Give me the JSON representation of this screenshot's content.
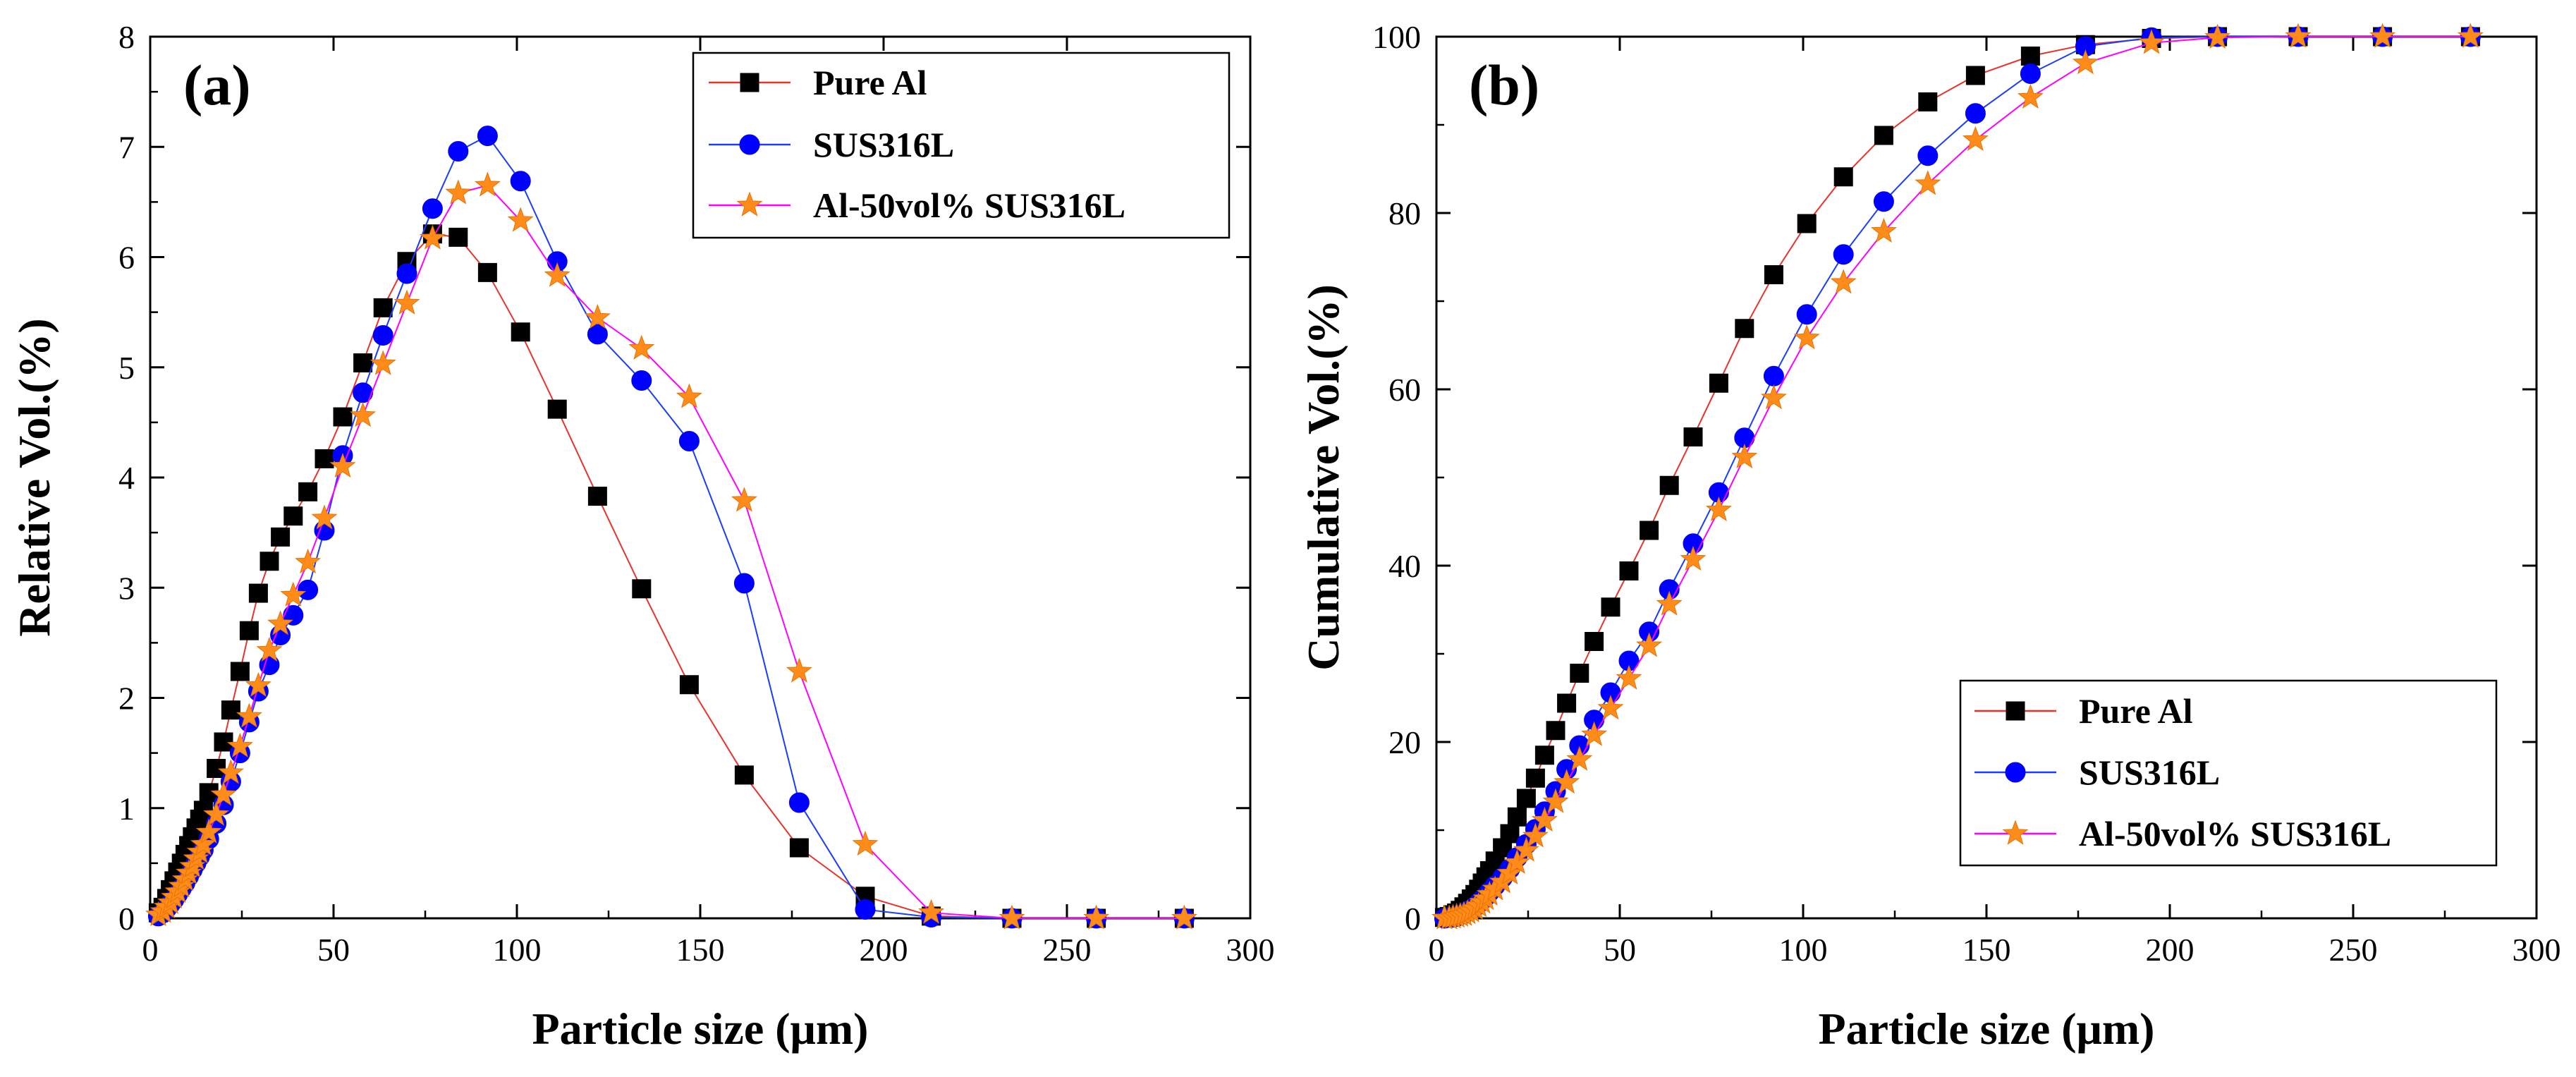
{
  "colors": {
    "pure_al_line": "#e8332b",
    "pure_al_marker": "#000000",
    "sus_line": "#1a3cff",
    "sus_marker": "#0000ff",
    "mix_line": "#ff00ff",
    "mix_marker": "#ff8c1a"
  },
  "chart_data": [
    {
      "id": "a",
      "type": "line",
      "panel_label": "(a)",
      "xlabel": "Particle size (μm)",
      "ylabel": "Relative Vol.(%)",
      "xlim": [
        0,
        300
      ],
      "ylim": [
        0,
        8
      ],
      "xticks": [
        "0",
        "50",
        "100",
        "150",
        "200",
        "250",
        "300"
      ],
      "yticks": [
        "0",
        "1",
        "2",
        "3",
        "4",
        "5",
        "6",
        "7",
        "8"
      ],
      "grid": false,
      "legend": "top-right",
      "series": [
        {
          "name": "Pure Al",
          "marker": "square",
          "x": [
            2.2,
            3.5,
            4.5,
            5.5,
            6.5,
            7.5,
            8.5,
            9.5,
            10.5,
            11.5,
            12.5,
            13.5,
            14.5,
            16,
            18,
            20,
            22,
            24.5,
            27,
            29.5,
            32.5,
            35.5,
            39,
            43,
            47.5,
            52.5,
            58,
            63.5,
            70,
            77,
            84,
            92,
            101,
            111,
            122,
            134,
            147,
            162,
            177,
            195,
            213,
            235,
            258,
            282
          ],
          "y": [
            0.05,
            0.1,
            0.18,
            0.26,
            0.34,
            0.42,
            0.5,
            0.58,
            0.66,
            0.74,
            0.82,
            0.9,
            0.98,
            1.14,
            1.36,
            1.6,
            1.89,
            2.24,
            2.61,
            2.95,
            3.24,
            3.46,
            3.65,
            3.87,
            4.17,
            4.55,
            5.04,
            5.54,
            5.96,
            6.21,
            6.18,
            5.86,
            5.32,
            4.62,
            3.83,
            2.99,
            2.12,
            1.3,
            0.64,
            0.2,
            0.02,
            0,
            0,
            0
          ]
        },
        {
          "name": "SUS316L",
          "marker": "circle",
          "x": [
            2.2,
            3.5,
            4.5,
            5.5,
            6.5,
            7.5,
            8.5,
            9.5,
            10.5,
            11.5,
            12.5,
            13.5,
            14.5,
            16,
            18,
            20,
            22,
            24.5,
            27,
            29.5,
            32.5,
            35.5,
            39,
            43,
            47.5,
            52.5,
            58,
            63.5,
            70,
            77,
            84,
            92,
            101,
            111,
            122,
            134,
            147,
            162,
            177,
            195,
            213,
            235,
            258,
            282
          ],
          "y": [
            0.02,
            0.05,
            0.09,
            0.13,
            0.17,
            0.22,
            0.27,
            0.32,
            0.38,
            0.44,
            0.5,
            0.56,
            0.62,
            0.72,
            0.86,
            1.03,
            1.24,
            1.5,
            1.78,
            2.06,
            2.3,
            2.57,
            2.75,
            2.98,
            3.52,
            4.2,
            4.77,
            5.29,
            5.85,
            6.44,
            6.96,
            7.1,
            6.69,
            5.96,
            5.3,
            4.88,
            4.33,
            3.04,
            1.05,
            0.08,
            0.01,
            0,
            0,
            0
          ]
        },
        {
          "name": "Al-50vol% SUS316L",
          "marker": "star",
          "x": [
            2.2,
            3.5,
            4.5,
            5.5,
            6.5,
            7.5,
            8.5,
            9.5,
            10.5,
            11.5,
            12.5,
            13.5,
            14.5,
            16,
            18,
            20,
            22,
            24.5,
            27,
            29.5,
            32.5,
            35.5,
            39,
            43,
            47.5,
            52.5,
            58,
            63.5,
            70,
            77,
            84,
            92,
            101,
            111,
            122,
            134,
            147,
            162,
            177,
            195,
            213,
            235,
            258,
            282
          ],
          "y": [
            0.03,
            0.06,
            0.1,
            0.14,
            0.19,
            0.24,
            0.29,
            0.35,
            0.41,
            0.47,
            0.54,
            0.6,
            0.67,
            0.78,
            0.94,
            1.12,
            1.32,
            1.56,
            1.83,
            2.11,
            2.43,
            2.67,
            2.93,
            3.23,
            3.63,
            4.1,
            4.56,
            5.03,
            5.58,
            6.17,
            6.58,
            6.65,
            6.33,
            5.83,
            5.45,
            5.17,
            4.73,
            3.79,
            2.24,
            0.67,
            0.05,
            0,
            0,
            0
          ]
        }
      ]
    },
    {
      "id": "b",
      "type": "line",
      "panel_label": "(b)",
      "xlabel": "Particle size (μm)",
      "ylabel": "Cumulative Vol.(%)",
      "xlim": [
        0,
        300
      ],
      "ylim": [
        0,
        100
      ],
      "xticks": [
        "0",
        "50",
        "100",
        "150",
        "200",
        "250",
        "300"
      ],
      "yticks": [
        "0",
        "20",
        "40",
        "60",
        "80",
        "100"
      ],
      "grid": false,
      "legend": "bottom-right",
      "series": [
        {
          "name": "Pure Al",
          "marker": "square",
          "x": [
            2.2,
            3.5,
            4.5,
            5.5,
            6.5,
            7.5,
            8.5,
            9.5,
            10.5,
            11.5,
            12.5,
            13.5,
            14.5,
            16,
            18,
            20,
            22,
            24.5,
            27,
            29.5,
            32.5,
            35.5,
            39,
            43,
            47.5,
            52.5,
            58,
            63.5,
            70,
            77,
            84,
            92,
            101,
            111,
            122,
            134,
            147,
            162,
            177,
            195,
            213,
            235,
            258,
            282
          ],
          "y": [
            0.1,
            0.2,
            0.4,
            0.6,
            0.9,
            1.3,
            1.7,
            2.2,
            2.7,
            3.3,
            4,
            4.7,
            5.4,
            6.5,
            8,
            9.6,
            11.5,
            13.6,
            15.9,
            18.5,
            21.3,
            24.4,
            27.8,
            31.4,
            35.3,
            39.4,
            44,
            49.1,
            54.6,
            60.7,
            66.9,
            73,
            78.8,
            84.1,
            88.8,
            92.6,
            95.6,
            97.8,
            99.1,
            99.8,
            100,
            100,
            100,
            100
          ]
        },
        {
          "name": "SUS316L",
          "marker": "circle",
          "x": [
            2.2,
            3.5,
            4.5,
            5.5,
            6.5,
            7.5,
            8.5,
            9.5,
            10.5,
            11.5,
            12.5,
            13.5,
            14.5,
            16,
            18,
            20,
            22,
            24.5,
            27,
            29.5,
            32.5,
            35.5,
            39,
            43,
            47.5,
            52.5,
            58,
            63.5,
            70,
            77,
            84,
            92,
            101,
            111,
            122,
            134,
            147,
            162,
            177,
            195,
            213,
            235,
            258,
            282
          ],
          "y": [
            0,
            0.1,
            0.1,
            0.2,
            0.4,
            0.5,
            0.8,
            1,
            1.3,
            1.7,
            2.1,
            2.5,
            3,
            3.7,
            4.6,
            5.6,
            6.9,
            8.4,
            10.1,
            12.1,
            14.4,
            16.9,
            19.6,
            22.5,
            25.6,
            29.2,
            32.5,
            37.3,
            42.5,
            48.3,
            54.5,
            61.5,
            68.5,
            75.3,
            81.3,
            86.5,
            91.3,
            95.8,
            98.9,
            99.9,
            100,
            100,
            100,
            100
          ]
        },
        {
          "name": "Al-50vol% SUS316L",
          "marker": "star",
          "x": [
            2.2,
            3.5,
            4.5,
            5.5,
            6.5,
            7.5,
            8.5,
            9.5,
            10.5,
            11.5,
            12.5,
            13.5,
            14.5,
            16,
            18,
            20,
            22,
            24.5,
            27,
            29.5,
            32.5,
            35.5,
            39,
            43,
            47.5,
            52.5,
            58,
            63.5,
            70,
            77,
            84,
            92,
            101,
            111,
            122,
            134,
            147,
            162,
            177,
            195,
            213,
            235,
            258,
            282
          ],
          "y": [
            0,
            0,
            0.1,
            0.2,
            0.3,
            0.4,
            0.6,
            0.8,
            1.1,
            1.4,
            1.8,
            2.2,
            2.7,
            3.3,
            4.1,
            5.1,
            6.3,
            7.7,
            9.3,
            11.1,
            13.2,
            15.4,
            18,
            20.8,
            23.8,
            27.2,
            30.9,
            35.6,
            40.7,
            46.3,
            52.3,
            59,
            65.8,
            72.1,
            77.9,
            83.3,
            88.3,
            93.1,
            97,
            99.3,
            99.9,
            100,
            100,
            100
          ]
        }
      ]
    }
  ]
}
